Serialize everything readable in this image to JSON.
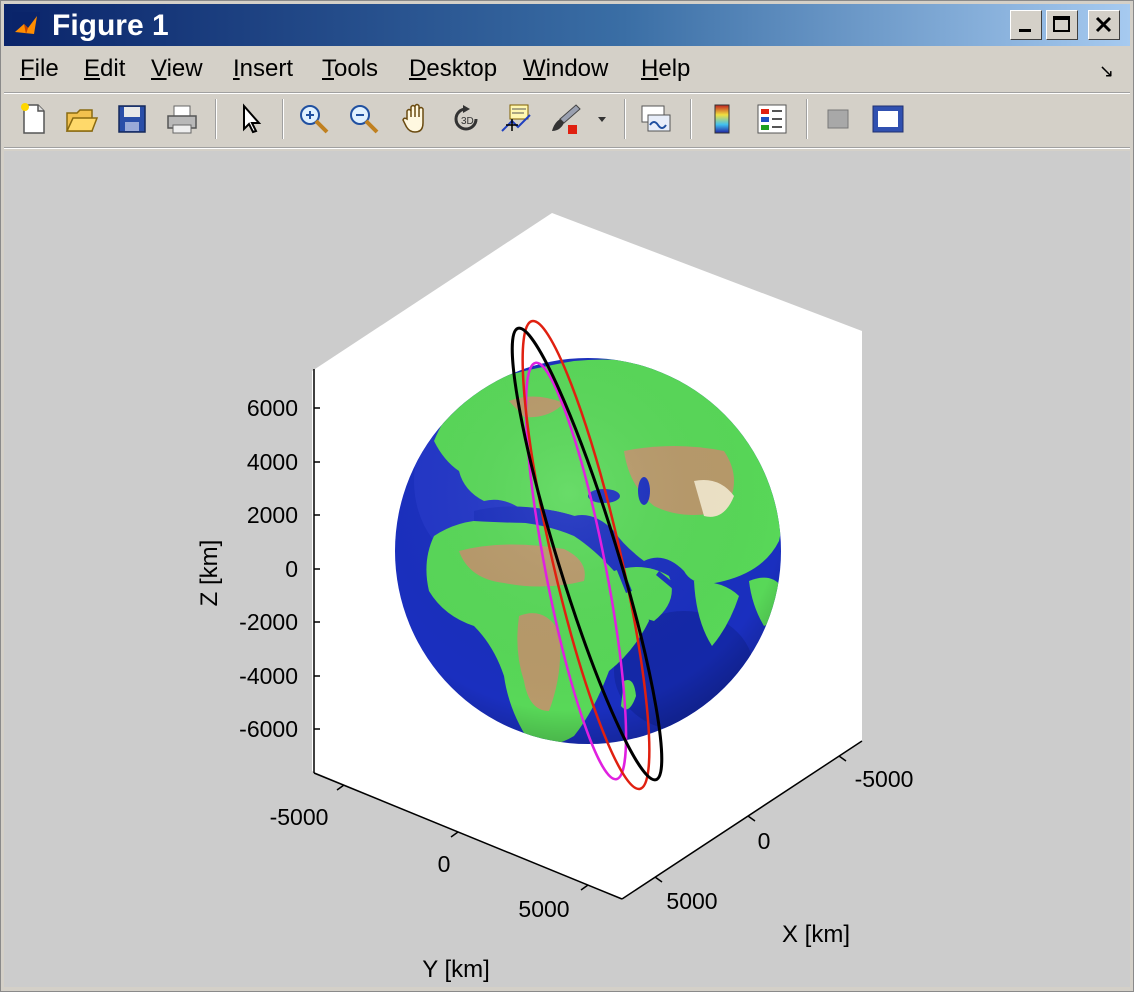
{
  "window": {
    "title": "Figure 1"
  },
  "menu": [
    "File",
    "Edit",
    "View",
    "Insert",
    "Tools",
    "Desktop",
    "Window",
    "Help"
  ],
  "menu_underline": [
    "F",
    "E",
    "V",
    "I",
    "T",
    "D",
    "W",
    "H"
  ],
  "toolbar": {
    "buttons": [
      "new-figure-icon",
      "open-file-icon",
      "save-icon",
      "print-icon",
      "edit-plot-arrow-icon",
      "zoom-in-icon",
      "zoom-out-icon",
      "pan-hand-icon",
      "rotate-3d-icon",
      "data-cursor-icon",
      "brush-icon",
      "brush-dropdown-icon",
      "link-plot-icon",
      "colorbar-icon",
      "legend-icon",
      "hide-plot-tools-icon",
      "show-plot-tools-icon"
    ]
  },
  "axes": {
    "z_label": "Z [km]",
    "y_label": "Y [km]",
    "x_label": "X [km]",
    "z_ticks": [
      "6000",
      "4000",
      "2000",
      "0",
      "-2000",
      "-4000",
      "-6000"
    ],
    "y_ticks": [
      "-5000",
      "0",
      "5000"
    ],
    "x_ticks": [
      "-5000",
      "0",
      "5000"
    ]
  },
  "orbits": [
    {
      "color": "#000000"
    },
    {
      "color": "#e02010"
    },
    {
      "color": "#e020e0"
    }
  ],
  "globe": {
    "ocean_color": "#1a2fbf",
    "land_color": "#58d858",
    "desert_color": "#b89a6a"
  }
}
